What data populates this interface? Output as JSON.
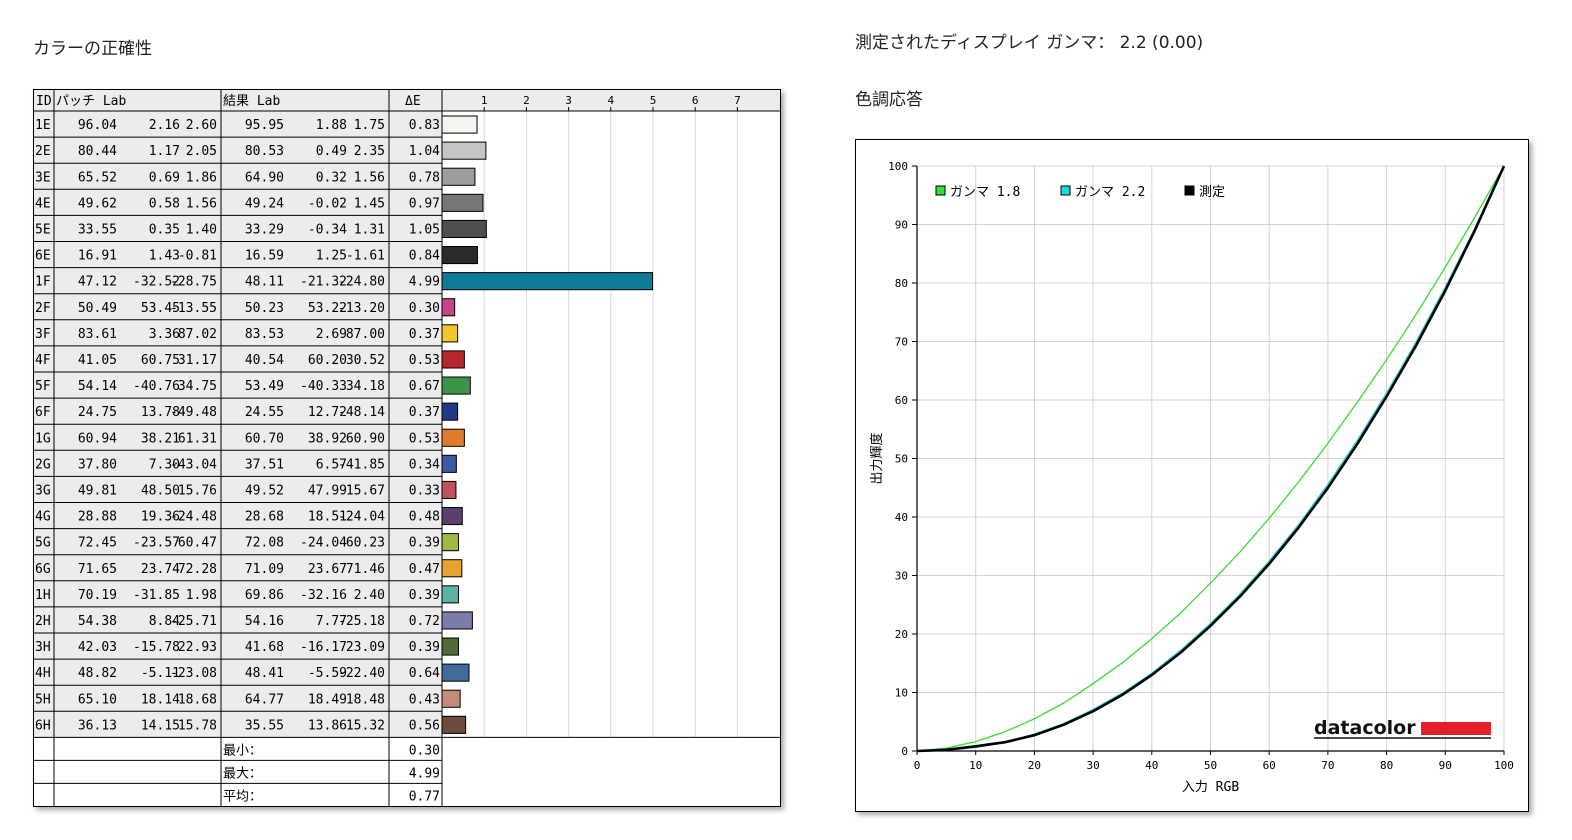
{
  "left_title": "カラーの正確性",
  "gamma_title": "測定されたディスプレイ ガンマ： 2.2 (0.00)",
  "response_title": "色調応答",
  "accuracy_table": {
    "headers": {
      "id": "ID",
      "patch": "パッチ Lab",
      "result": "結果 Lab",
      "de": "ΔE"
    },
    "scale_ticks": [
      "1",
      "2",
      "3",
      "4",
      "5",
      "6",
      "7"
    ],
    "summary": [
      {
        "label": "最小：",
        "value": "0.30"
      },
      {
        "label": "最大：",
        "value": "4.99"
      },
      {
        "label": "平均：",
        "value": "0.77"
      }
    ]
  },
  "chart_data": [
    {
      "type": "bar",
      "ylabel": "ΔE",
      "xlim": [
        0,
        7
      ],
      "rows": [
        {
          "id": "1E",
          "patch": [
            "96.04",
            "2.16",
            "2.60"
          ],
          "result": [
            "95.95",
            "1.88",
            "1.75"
          ],
          "de": "0.83",
          "value": 0.83,
          "color": "#f7f3ef"
        },
        {
          "id": "2E",
          "patch": [
            "80.44",
            "1.17",
            "2.05"
          ],
          "result": [
            "80.53",
            "0.49",
            "2.35"
          ],
          "de": "1.04",
          "value": 1.04,
          "color": "#c8c6c5"
        },
        {
          "id": "3E",
          "patch": [
            "65.52",
            "0.69",
            "1.86"
          ],
          "result": [
            "64.90",
            "0.32",
            "1.56"
          ],
          "de": "0.78",
          "value": 0.78,
          "color": "#9e9d9c"
        },
        {
          "id": "4E",
          "patch": [
            "49.62",
            "0.58",
            "1.56"
          ],
          "result": [
            "49.24",
            "-0.02",
            "1.45"
          ],
          "de": "0.97",
          "value": 0.97,
          "color": "#767676"
        },
        {
          "id": "5E",
          "patch": [
            "33.55",
            "0.35",
            "1.40"
          ],
          "result": [
            "33.29",
            "-0.34",
            "1.31"
          ],
          "de": "1.05",
          "value": 1.05,
          "color": "#4f4f4f"
        },
        {
          "id": "6E",
          "patch": [
            "16.91",
            "1.43",
            "-0.81"
          ],
          "result": [
            "16.59",
            "1.25",
            "-1.61"
          ],
          "de": "0.84",
          "value": 0.84,
          "color": "#2a2a2b"
        },
        {
          "id": "1F",
          "patch": [
            "47.12",
            "-32.52",
            "-28.75"
          ],
          "result": [
            "48.11",
            "-21.32",
            "-24.80"
          ],
          "de": "4.99",
          "value": 4.99,
          "color": "#0f7b96"
        },
        {
          "id": "2F",
          "patch": [
            "50.49",
            "53.45",
            "-13.55"
          ],
          "result": [
            "50.23",
            "53.22",
            "-13.20"
          ],
          "de": "0.30",
          "value": 0.3,
          "color": "#c4458a"
        },
        {
          "id": "3F",
          "patch": [
            "83.61",
            "3.36",
            "87.02"
          ],
          "result": [
            "83.53",
            "2.69",
            "87.00"
          ],
          "de": "0.37",
          "value": 0.37,
          "color": "#f2c62a"
        },
        {
          "id": "4F",
          "patch": [
            "41.05",
            "60.75",
            "31.17"
          ],
          "result": [
            "40.54",
            "60.20",
            "30.52"
          ],
          "de": "0.53",
          "value": 0.53,
          "color": "#b8262e"
        },
        {
          "id": "5F",
          "patch": [
            "54.14",
            "-40.76",
            "34.75"
          ],
          "result": [
            "53.49",
            "-40.33",
            "34.18"
          ],
          "de": "0.67",
          "value": 0.67,
          "color": "#3e9446"
        },
        {
          "id": "6F",
          "patch": [
            "24.75",
            "13.78",
            "-49.48"
          ],
          "result": [
            "24.55",
            "12.72",
            "-48.14"
          ],
          "de": "0.37",
          "value": 0.37,
          "color": "#1f3a87"
        },
        {
          "id": "1G",
          "patch": [
            "60.94",
            "38.21",
            "61.31"
          ],
          "result": [
            "60.70",
            "38.92",
            "60.90"
          ],
          "de": "0.53",
          "value": 0.53,
          "color": "#e07a2d"
        },
        {
          "id": "2G",
          "patch": [
            "37.80",
            "7.30",
            "-43.04"
          ],
          "result": [
            "37.51",
            "6.57",
            "-41.85"
          ],
          "de": "0.34",
          "value": 0.34,
          "color": "#3a5aa4"
        },
        {
          "id": "3G",
          "patch": [
            "49.81",
            "48.50",
            "15.76"
          ],
          "result": [
            "49.52",
            "47.99",
            "15.67"
          ],
          "de": "0.33",
          "value": 0.33,
          "color": "#c3505f"
        },
        {
          "id": "4G",
          "patch": [
            "28.88",
            "19.36",
            "-24.48"
          ],
          "result": [
            "28.68",
            "18.51",
            "-24.04"
          ],
          "de": "0.48",
          "value": 0.48,
          "color": "#5b3d6e"
        },
        {
          "id": "5G",
          "patch": [
            "72.45",
            "-23.57",
            "60.47"
          ],
          "result": [
            "72.08",
            "-24.04",
            "60.23"
          ],
          "de": "0.39",
          "value": 0.39,
          "color": "#9dbb42"
        },
        {
          "id": "6G",
          "patch": [
            "71.65",
            "23.74",
            "72.28"
          ],
          "result": [
            "71.09",
            "23.67",
            "71.46"
          ],
          "de": "0.47",
          "value": 0.47,
          "color": "#e8a22f"
        },
        {
          "id": "1H",
          "patch": [
            "70.19",
            "-31.85",
            "1.98"
          ],
          "result": [
            "69.86",
            "-32.16",
            "2.40"
          ],
          "de": "0.39",
          "value": 0.39,
          "color": "#5bb3a2"
        },
        {
          "id": "2H",
          "patch": [
            "54.38",
            "8.84",
            "-25.71"
          ],
          "result": [
            "54.16",
            "7.77",
            "-25.18"
          ],
          "de": "0.72",
          "value": 0.72,
          "color": "#7a7cab"
        },
        {
          "id": "3H",
          "patch": [
            "42.03",
            "-15.78",
            "22.93"
          ],
          "result": [
            "41.68",
            "-16.17",
            "23.09"
          ],
          "de": "0.39",
          "value": 0.39,
          "color": "#4f6a37"
        },
        {
          "id": "4H",
          "patch": [
            "48.82",
            "-5.11",
            "-23.08"
          ],
          "result": [
            "48.41",
            "-5.59",
            "-22.40"
          ],
          "de": "0.64",
          "value": 0.64,
          "color": "#3f6c98"
        },
        {
          "id": "5H",
          "patch": [
            "65.10",
            "18.14",
            "18.68"
          ],
          "result": [
            "64.77",
            "18.49",
            "18.48"
          ],
          "de": "0.43",
          "value": 0.43,
          "color": "#c48b7a"
        },
        {
          "id": "6H",
          "patch": [
            "36.13",
            "14.15",
            "15.78"
          ],
          "result": [
            "35.55",
            "13.86",
            "15.32"
          ],
          "de": "0.56",
          "value": 0.56,
          "color": "#6b4a3c"
        }
      ]
    },
    {
      "type": "line",
      "xlabel": "入力 RGB",
      "ylabel": "出力輝度",
      "xlim": [
        0,
        100
      ],
      "ylim": [
        0,
        100
      ],
      "xticks": [
        0,
        10,
        20,
        30,
        40,
        50,
        60,
        70,
        80,
        90,
        100
      ],
      "yticks": [
        0,
        10,
        20,
        30,
        40,
        50,
        60,
        70,
        80,
        90,
        100
      ],
      "grid": true,
      "legend": "top-left",
      "logo": "datacolor",
      "x": [
        0,
        5,
        10,
        15,
        20,
        25,
        30,
        35,
        40,
        45,
        50,
        55,
        60,
        65,
        70,
        75,
        80,
        85,
        90,
        95,
        100
      ],
      "series": [
        {
          "name": "ガンマ 1.8",
          "color": "#33dd33",
          "values": [
            0,
            0.5,
            1.6,
            3.3,
            5.5,
            8.2,
            11.5,
            15.1,
            19.2,
            23.7,
            28.7,
            34.0,
            39.8,
            46.0,
            52.6,
            59.6,
            66.9,
            74.6,
            82.7,
            91.2,
            100
          ]
        },
        {
          "name": "ガンマ 2.2",
          "color": "#22d4e0",
          "values": [
            0,
            0.1,
            0.6,
            1.5,
            2.9,
            4.7,
            7.1,
            9.9,
            13.3,
            17.3,
            21.8,
            26.8,
            32.5,
            38.7,
            45.6,
            53.1,
            61.2,
            69.9,
            79.3,
            89.3,
            100
          ]
        },
        {
          "name": "測定",
          "color": "#000000",
          "values": [
            0,
            0.2,
            0.8,
            1.5,
            2.7,
            4.5,
            6.8,
            9.6,
            13.0,
            16.9,
            21.4,
            26.4,
            32.0,
            38.2,
            45.0,
            52.5,
            60.6,
            69.3,
            78.7,
            88.9,
            100
          ]
        }
      ]
    }
  ]
}
